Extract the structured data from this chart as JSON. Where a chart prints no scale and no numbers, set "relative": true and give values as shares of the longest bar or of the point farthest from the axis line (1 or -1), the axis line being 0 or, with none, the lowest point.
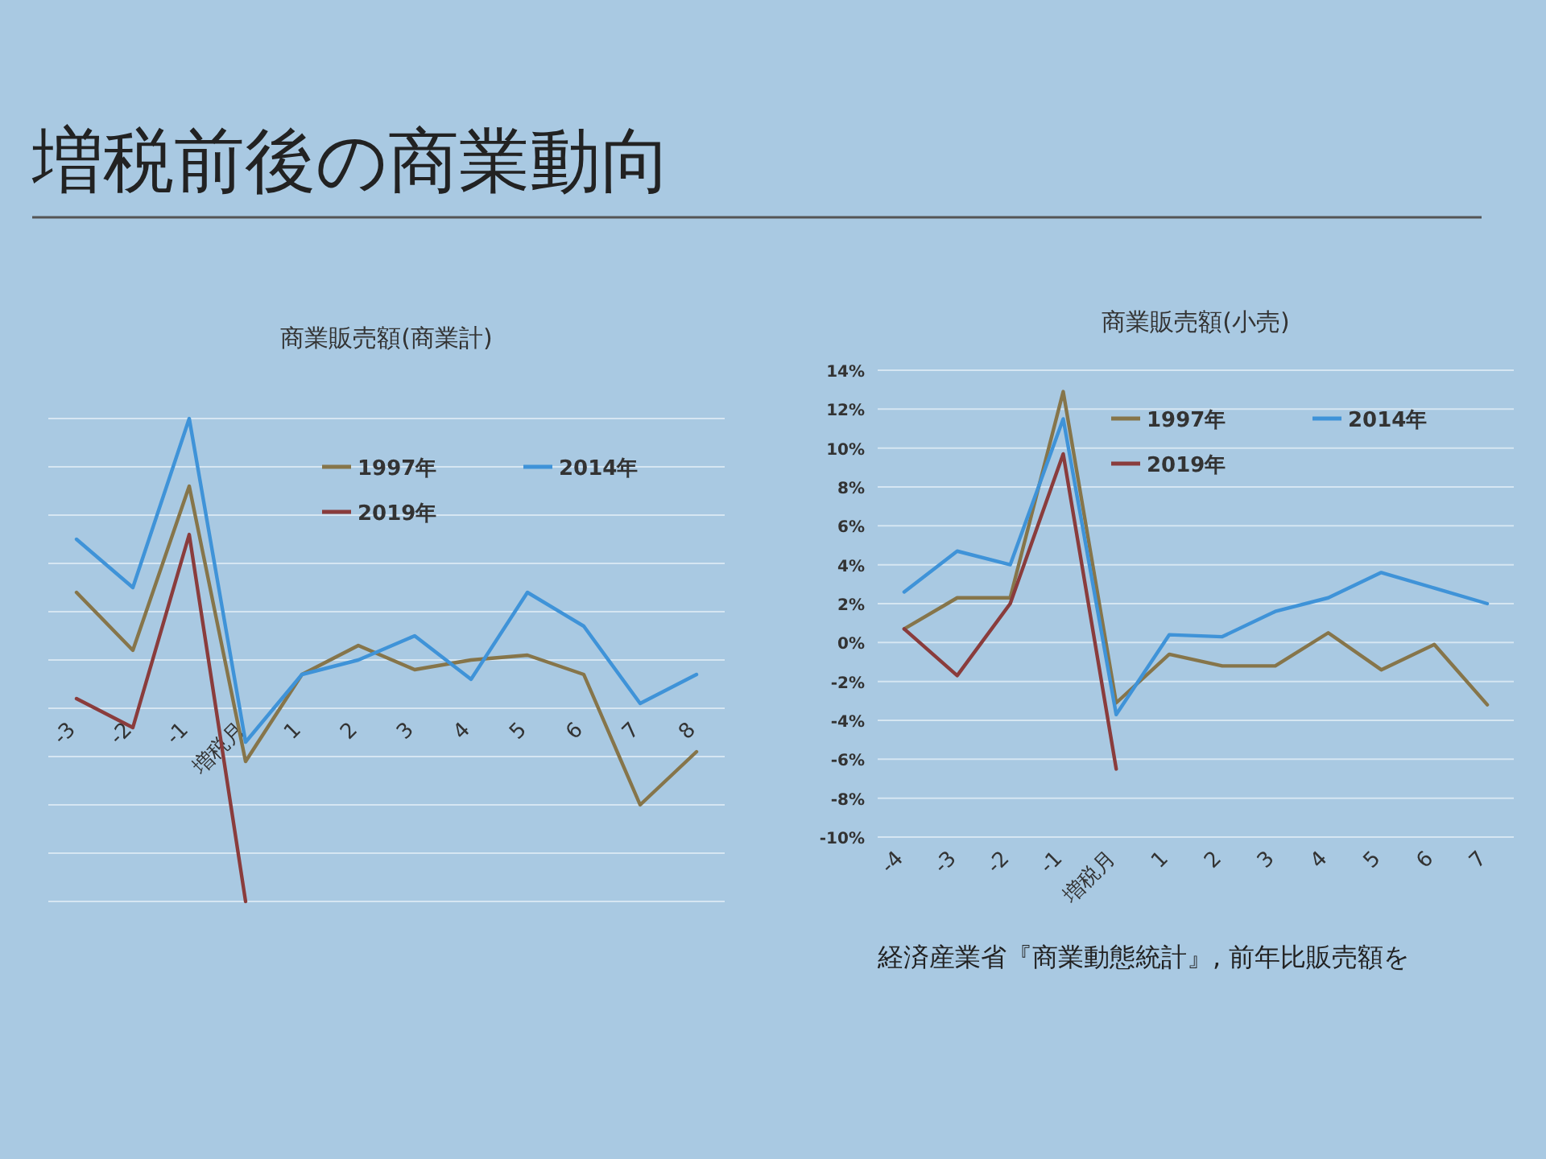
{
  "chart_data": [
    {
      "type": "other",
      "title": "増税前後の商業動向"
    },
    {
      "type": "line",
      "title": "商業販売額(商業計)",
      "relative": true,
      "grid": true,
      "legend": "top right",
      "marker": "none",
      "line_style": "solid",
      "categories": [
        "-3",
        "-2",
        "-1",
        "増税月",
        "1",
        "2",
        "3",
        "4",
        "5",
        "6",
        "7",
        "8"
      ],
      "series": [
        {
          "name": "1997年",
          "color": "#86754a",
          "values": [
            0.64,
            0.52,
            0.86,
            0.29,
            0.47,
            0.53,
            0.48,
            0.5,
            0.51,
            0.47,
            0.2,
            0.31
          ]
        },
        {
          "name": "2014年",
          "color": "#3f93d8",
          "values": [
            0.75,
            0.65,
            1,
            0.33,
            0.47,
            0.5,
            0.55,
            0.46,
            0.64,
            0.57,
            0.41,
            0.47
          ]
        },
        {
          "name": "2019年",
          "color": "#8a3c3c",
          "values": [
            0.42,
            0.36,
            0.76,
            0,
            null,
            null,
            null,
            null,
            null,
            null,
            null,
            null
          ]
        }
      ]
    },
    {
      "type": "line",
      "title": "商業販売額(小売)",
      "grid": "y",
      "legend": "top right",
      "marker": "none",
      "line_style": "solid",
      "ylim": [
        -10,
        14
      ],
      "yticks": [
        {
          "value": -10,
          "label": "-10%"
        },
        {
          "value": -8,
          "label": "-8%"
        },
        {
          "value": -6,
          "label": "-6%"
        },
        {
          "value": -4,
          "label": "-4%"
        },
        {
          "value": -2,
          "label": "-2%"
        },
        {
          "value": 0,
          "label": "0%"
        },
        {
          "value": 2,
          "label": "2%"
        },
        {
          "value": 4,
          "label": "4%"
        },
        {
          "value": 6,
          "label": "6%"
        },
        {
          "value": 8,
          "label": "8%"
        },
        {
          "value": 10,
          "label": "10%"
        },
        {
          "value": 12,
          "label": "12%"
        },
        {
          "value": 14,
          "label": "14%"
        }
      ],
      "categories": [
        "-4",
        "-3",
        "-2",
        "-1",
        "増税月",
        "1",
        "2",
        "3",
        "4",
        "5",
        "6",
        "7"
      ],
      "series": [
        {
          "name": "1997年",
          "color": "#86754a",
          "values": [
            0.7,
            2.3,
            2.3,
            12.9,
            -3.1,
            -0.6,
            -1.2,
            -1.2,
            0.5,
            -1.4,
            -0.1,
            -3.2
          ]
        },
        {
          "name": "2014年",
          "color": "#3f93d8",
          "values": [
            2.6,
            4.7,
            4.0,
            11.5,
            -3.7,
            0.4,
            0.3,
            1.6,
            2.3,
            3.6,
            2.8,
            2.0
          ]
        },
        {
          "name": "2019年",
          "color": "#8a3c3c",
          "values": [
            0.7,
            -1.7,
            2.0,
            9.7,
            -6.5,
            null,
            null,
            null,
            null,
            null,
            null,
            null
          ]
        }
      ],
      "annotations": [
        "経済産業省『商業動態統計』, 前年比販売額を"
      ]
    }
  ]
}
